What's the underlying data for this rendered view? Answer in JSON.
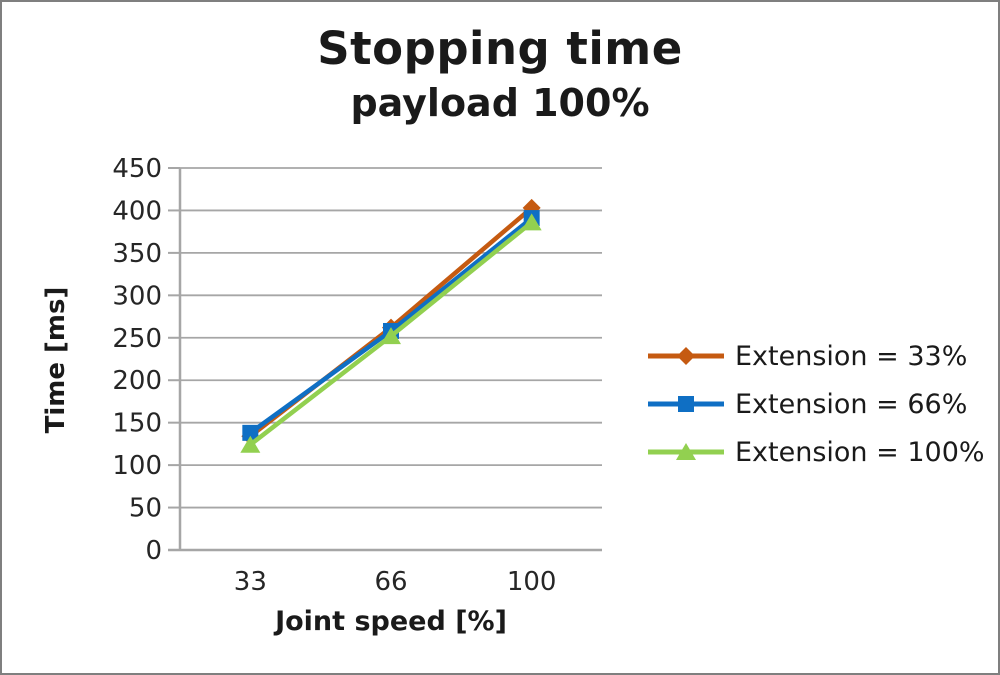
{
  "chart_data": {
    "type": "line",
    "title": "Stopping time",
    "subtitle": "payload 100%",
    "xlabel": "Joint speed [%]",
    "ylabel": "Time [ms]",
    "categories": [
      "33",
      "66",
      "100"
    ],
    "series": [
      {
        "name": "Extension = 33%",
        "marker": "diamond",
        "color": "#C55A11",
        "values": [
          134,
          262,
          403
        ]
      },
      {
        "name": "Extension = 66%",
        "marker": "square",
        "color": "#0F6FC4",
        "values": [
          138,
          258,
          391
        ]
      },
      {
        "name": "Extension = 100%",
        "marker": "triangle",
        "color": "#92D050",
        "values": [
          124,
          252,
          386
        ]
      }
    ],
    "ylim": [
      0,
      450
    ],
    "yticks": [
      0,
      50,
      100,
      150,
      200,
      250,
      300,
      350,
      400,
      450
    ],
    "grid": true,
    "legend_position": "right",
    "axis_color": "#A6A6A6",
    "grid_color": "#A6A6A6",
    "background_color": "#FFFFFF",
    "border_color": "#7F7F7F"
  }
}
